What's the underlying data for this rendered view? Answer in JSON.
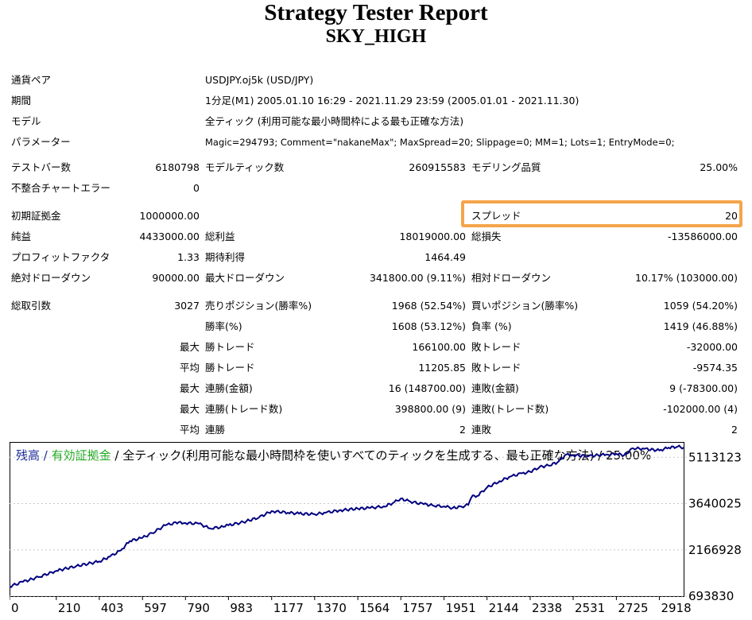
{
  "report": {
    "title": "Strategy Tester Report",
    "subtitle": "SKY_HIGH"
  },
  "info": [
    {
      "label": "通貨ペア",
      "value": "USDJPY.oj5k (USD/JPY)"
    },
    {
      "label": "期間",
      "value": "1分足(M1) 2005.01.10 16:29 - 2021.11.29 23:59 (2005.01.01 - 2021.11.30)"
    },
    {
      "label": "モデル",
      "value": "全ティック (利用可能な最小時間枠による最も正確な方法)"
    },
    {
      "label": "パラメーター",
      "value": "Magic=294793; Comment=\"nakaneMax\"; MaxSpread=20; Slippage=0; MM=1; Lots=1; EntryMode=0;"
    }
  ],
  "stats": {
    "bars": {
      "label": "テストバー数",
      "value": "6180798"
    },
    "ticks": {
      "label": "モデルティック数",
      "value": "260915583"
    },
    "quality": {
      "label": "モデリング品質",
      "value": "25.00%"
    },
    "mismatch": {
      "label": "不整合チャートエラー",
      "value": "0"
    },
    "deposit": {
      "label": "初期証拠金",
      "value": "1000000.00"
    },
    "spread": {
      "label": "スプレッド",
      "value": "20"
    },
    "net": {
      "label": "純益",
      "value": "4433000.00"
    },
    "gross_profit": {
      "label": "総利益",
      "value": "18019000.00"
    },
    "gross_loss": {
      "label": "総損失",
      "value": "-13586000.00"
    },
    "pf": {
      "label": "プロフィットファクタ",
      "value": "1.33"
    },
    "expected": {
      "label": "期待利得",
      "value": "1464.49"
    },
    "abs_dd": {
      "label": "絶対ドローダウン",
      "value": "90000.00"
    },
    "max_dd": {
      "label": "最大ドローダウン",
      "value": "341800.00 (9.11%)"
    },
    "rel_dd": {
      "label": "相対ドローダウン",
      "value": "10.17% (103000.00)"
    },
    "total": {
      "label": "総取引数",
      "value": "3027"
    },
    "short": {
      "label": "売りポジション(勝率%)",
      "value": "1968 (52.54%)"
    },
    "long": {
      "label": "買いポジション(勝率%)",
      "value": "1059 (54.20%)"
    },
    "win_rate": {
      "label": "勝率(%)",
      "value": "1608 (53.12%)"
    },
    "loss_rate": {
      "label": "負率 (%)",
      "value": "1419 (46.88%)"
    },
    "max_word": "最大",
    "avg_word": "平均",
    "max_win": {
      "label": "勝トレード",
      "value": "166100.00"
    },
    "max_loss": {
      "label": "敗トレード",
      "value": "-32000.00"
    },
    "avg_win": {
      "label": "勝トレード",
      "value": "11205.85"
    },
    "avg_loss": {
      "label": "敗トレード",
      "value": "-9574.35"
    },
    "cons_win_amt": {
      "label": "連勝(金額)",
      "value": "16 (148700.00)"
    },
    "cons_loss_amt": {
      "label": "連敗(金額)",
      "value": "9 (-78300.00)"
    },
    "cons_win_trades": {
      "label": "連勝(トレード数)",
      "value": "398800.00 (9)"
    },
    "cons_loss_trades": {
      "label": "連敗(トレード数)",
      "value": "-102000.00 (4)"
    },
    "avg_cons_win": {
      "label": "連勝",
      "value": "2"
    },
    "avg_cons_loss": {
      "label": "連敗",
      "value": "2"
    }
  },
  "chart_data": {
    "type": "line",
    "legend": {
      "balance": "残高",
      "sep1": " / ",
      "equity": "有効証拠金",
      "rest": " / 全ティック(利用可能な最小時間枠を使いすべてのティックを生成する、最も正確な方法) / 25.00%"
    },
    "colors": {
      "balance": "#1c2b9a",
      "equity": "#22aa22",
      "text": "#1c2b9a",
      "line": "#000080",
      "grid": "#000000"
    },
    "x_ticks": [
      0,
      210,
      403,
      597,
      790,
      983,
      1177,
      1370,
      1564,
      1757,
      1951,
      2144,
      2338,
      2531,
      2725,
      2918
    ],
    "y_ticks": [
      "693830",
      "2166928",
      "3640025",
      "5113123"
    ],
    "xlim": [
      0,
      3027
    ],
    "ylim": [
      693830,
      5600000
    ],
    "x": [
      0,
      60,
      130,
      210,
      300,
      403,
      450,
      500,
      540,
      597,
      640,
      700,
      760,
      790,
      850,
      900,
      960,
      983,
      1050,
      1120,
      1177,
      1250,
      1300,
      1370,
      1420,
      1480,
      1564,
      1620,
      1680,
      1720,
      1757,
      1800,
      1860,
      1900,
      1951,
      1990,
      2030,
      2060,
      2080,
      2100,
      2144,
      2200,
      2250,
      2300,
      2338,
      2380,
      2420,
      2460,
      2500,
      2531,
      2600,
      2680,
      2725,
      2760,
      2800,
      2850,
      2918,
      2960,
      3000,
      3027
    ],
    "y": [
      1000000,
      1150000,
      1300000,
      1500000,
      1650000,
      1800000,
      1950000,
      2150000,
      2450000,
      2550000,
      2700000,
      2950000,
      3050000,
      3020000,
      3000000,
      2850000,
      2900000,
      2950000,
      3050000,
      3200000,
      3400000,
      3350000,
      3320000,
      3300000,
      3350000,
      3420000,
      3480000,
      3500000,
      3550000,
      3650000,
      3800000,
      3700000,
      3620000,
      3580000,
      3550000,
      3500000,
      3540000,
      3600000,
      3900000,
      3880000,
      4150000,
      4350000,
      4500000,
      4600000,
      4650000,
      4800000,
      4850000,
      4950000,
      5200000,
      5180000,
      5150000,
      5200000,
      5220000,
      5180000,
      5400000,
      5380000,
      5330000,
      5420000,
      5450000,
      5420000
    ]
  }
}
